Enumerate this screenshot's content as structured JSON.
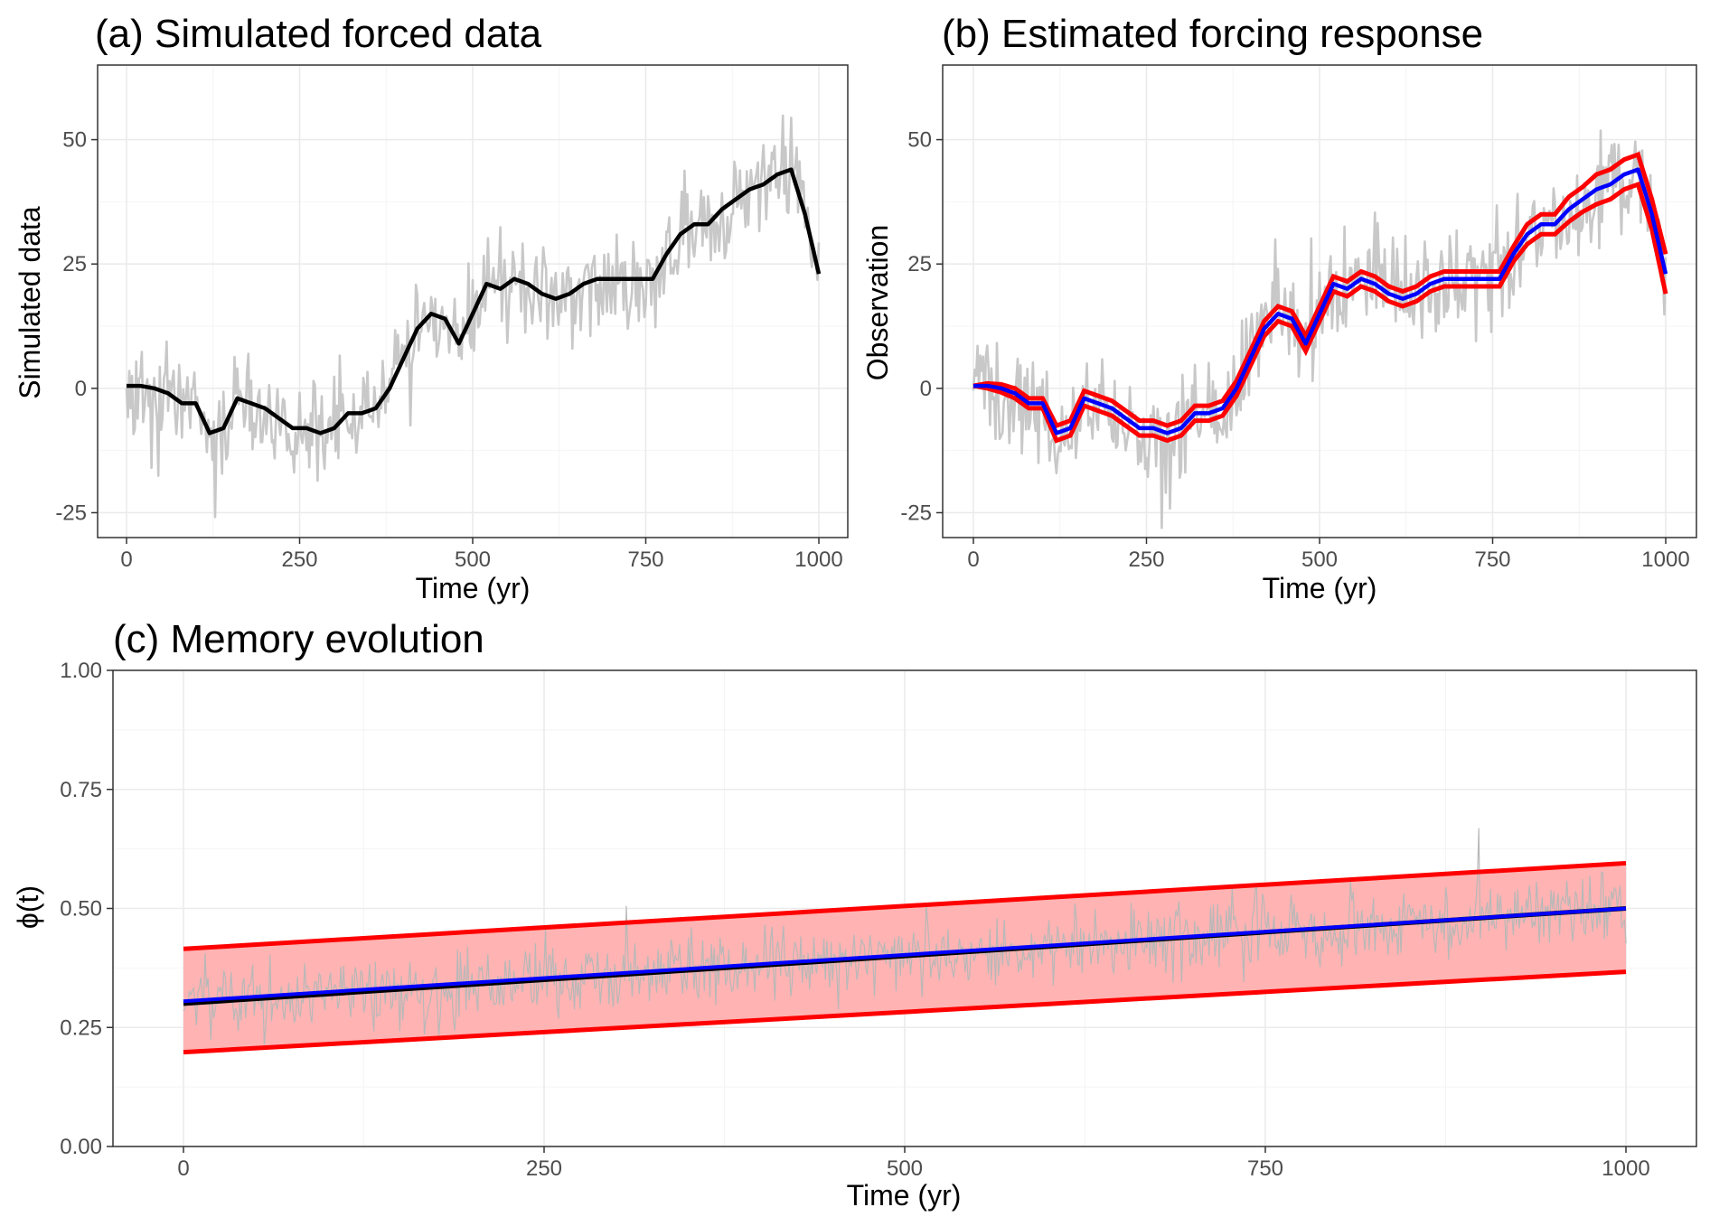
{
  "chart_data": [
    {
      "panel": "a",
      "type": "line",
      "title": "(a) Simulated forced data",
      "xlabel": "Time (yr)",
      "ylabel": "Simulated data",
      "xlim": [
        0,
        1000
      ],
      "ylim": [
        -30,
        65
      ],
      "xticks": [
        0,
        250,
        500,
        750,
        1000
      ],
      "xtick_labels": [
        "0",
        "250",
        "500",
        "750",
        "1000"
      ],
      "yticks": [
        -25,
        0,
        25,
        50
      ],
      "ytick_labels": [
        "-25",
        "0",
        "25",
        "50"
      ],
      "grid": true,
      "colors": {
        "raw": "#c8c8c8",
        "smooth": "#000000"
      },
      "series": [
        {
          "role": "raw-noisy",
          "x": [
            0,
            20,
            40,
            60,
            80,
            100,
            120,
            140,
            160,
            180,
            200,
            220,
            240,
            260,
            280,
            300,
            320,
            340,
            360,
            380,
            400,
            420,
            440,
            460,
            480,
            500,
            520,
            540,
            560,
            580,
            600,
            620,
            640,
            660,
            680,
            700,
            720,
            740,
            760,
            780,
            800,
            820,
            840,
            860,
            880,
            900,
            920,
            940,
            960,
            980,
            1000
          ],
          "values": [
            1,
            0,
            -2,
            -2,
            -4,
            -3,
            -10,
            -9,
            -3,
            -3,
            -6,
            -6,
            -9,
            -10,
            -10,
            -8,
            -5,
            -5,
            -4,
            0,
            7,
            13,
            15,
            13,
            9,
            14,
            20,
            20,
            21,
            22,
            20,
            18,
            20,
            21,
            21,
            22,
            22,
            21,
            22,
            25,
            30,
            32,
            32,
            34,
            38,
            41,
            42,
            43,
            44,
            35,
            20
          ]
        },
        {
          "role": "smoothed-forcing",
          "x": [
            0,
            20,
            40,
            60,
            80,
            100,
            120,
            140,
            160,
            180,
            200,
            220,
            240,
            260,
            280,
            300,
            320,
            340,
            360,
            380,
            400,
            420,
            440,
            460,
            480,
            500,
            520,
            540,
            560,
            580,
            600,
            620,
            640,
            660,
            680,
            700,
            720,
            740,
            760,
            780,
            800,
            820,
            840,
            860,
            880,
            900,
            920,
            940,
            960,
            980,
            1000
          ],
          "values": [
            0.5,
            0.5,
            0,
            -1,
            -3,
            -3,
            -9,
            -8,
            -2,
            -3,
            -4,
            -6,
            -8,
            -8,
            -9,
            -8,
            -5,
            -5,
            -4,
            0,
            6,
            12,
            15,
            14,
            9,
            15,
            21,
            20,
            22,
            21,
            19,
            18,
            19,
            21,
            22,
            22,
            22,
            22,
            22,
            27,
            31,
            33,
            33,
            36,
            38,
            40,
            41,
            43,
            44,
            35,
            23
          ]
        }
      ]
    },
    {
      "panel": "b",
      "type": "line",
      "title": "(b) Estimated forcing response",
      "xlabel": "Time (yr)",
      "ylabel": "Observation",
      "xlim": [
        0,
        1000
      ],
      "ylim": [
        -30,
        65
      ],
      "xticks": [
        0,
        250,
        500,
        750,
        1000
      ],
      "xtick_labels": [
        "0",
        "250",
        "500",
        "750",
        "1000"
      ],
      "yticks": [
        -25,
        0,
        25,
        50
      ],
      "ytick_labels": [
        "-25",
        "0",
        "25",
        "50"
      ],
      "grid": true,
      "colors": {
        "raw": "#c8c8c8",
        "estimate": "#0000ff",
        "bounds": "#ff0000"
      },
      "band_halfwidth": [
        0,
        0.5,
        0.8,
        1,
        1,
        1,
        1.5,
        1.5,
        1.5,
        1.5,
        1.5,
        1.5,
        1.5,
        1.5,
        1.5,
        1.5,
        1.5,
        1.5,
        1.5,
        1.5,
        1.5,
        1.5,
        1.5,
        1.5,
        1.5,
        1.5,
        1.5,
        1.5,
        1.5,
        1.5,
        1.5,
        1.5,
        1.5,
        1.5,
        1.5,
        1.5,
        1.5,
        1.5,
        1.5,
        1.5,
        2,
        2,
        2,
        2.5,
        2.5,
        3,
        3,
        3,
        3,
        3,
        4
      ],
      "series": [
        {
          "role": "raw-noisy",
          "x": [
            0,
            20,
            40,
            60,
            80,
            100,
            120,
            140,
            160,
            180,
            200,
            220,
            240,
            260,
            280,
            300,
            320,
            340,
            360,
            380,
            400,
            420,
            440,
            460,
            480,
            500,
            520,
            540,
            560,
            580,
            600,
            620,
            640,
            660,
            680,
            700,
            720,
            740,
            760,
            780,
            800,
            820,
            840,
            860,
            880,
            900,
            920,
            940,
            960,
            980,
            1000
          ],
          "values": [
            1,
            0,
            -2,
            -2,
            -4,
            -3,
            -10,
            -9,
            -3,
            -3,
            -6,
            -6,
            -9,
            -10,
            -10,
            -8,
            -5,
            -5,
            -4,
            0,
            7,
            13,
            15,
            13,
            9,
            14,
            20,
            20,
            21,
            22,
            20,
            18,
            20,
            21,
            21,
            22,
            22,
            21,
            22,
            25,
            30,
            32,
            32,
            34,
            38,
            41,
            42,
            43,
            44,
            35,
            20
          ]
        },
        {
          "name": "",
          "role": "estimate",
          "x": [
            0,
            20,
            40,
            60,
            80,
            100,
            120,
            140,
            160,
            180,
            200,
            220,
            240,
            260,
            280,
            300,
            320,
            340,
            360,
            380,
            400,
            420,
            440,
            460,
            480,
            500,
            520,
            540,
            560,
            580,
            600,
            620,
            640,
            660,
            680,
            700,
            720,
            740,
            760,
            780,
            800,
            820,
            840,
            860,
            880,
            900,
            920,
            940,
            960,
            980,
            1000
          ],
          "values": [
            0.5,
            0.5,
            0,
            -1,
            -3,
            -3,
            -9,
            -8,
            -2,
            -3,
            -4,
            -6,
            -8,
            -8,
            -9,
            -8,
            -5,
            -5,
            -4,
            0,
            6,
            12,
            15,
            14,
            9,
            15,
            21,
            20,
            22,
            21,
            19,
            18,
            19,
            21,
            22,
            22,
            22,
            22,
            22,
            27,
            31,
            33,
            33,
            36,
            38,
            40,
            41,
            43,
            44,
            35,
            23
          ]
        }
      ]
    },
    {
      "panel": "c",
      "type": "line",
      "title": "(c) Memory evolution",
      "xlabel": "Time (yr)",
      "ylabel": "ϕ(t)",
      "xlim": [
        0,
        1000
      ],
      "ylim": [
        0,
        1
      ],
      "xticks": [
        0,
        250,
        500,
        750,
        1000
      ],
      "xtick_labels": [
        "0",
        "250",
        "500",
        "750",
        "1000"
      ],
      "yticks": [
        0,
        0.25,
        0.5,
        0.75,
        1.0
      ],
      "ytick_labels": [
        "0.00",
        "0.25",
        "0.50",
        "0.75",
        "1.00"
      ],
      "grid": true,
      "colors": {
        "raw": "#b8b8b8",
        "band_fill": "#ffb3b3",
        "bounds": "#ff0000",
        "estimate": "#0000ff",
        "true": "#000000"
      },
      "raw_noise_sd": 0.04,
      "series": [
        {
          "role": "true-memory",
          "x": [
            0,
            1000
          ],
          "values": [
            0.3,
            0.5
          ]
        },
        {
          "role": "estimate",
          "x": [
            0,
            1000
          ],
          "values": [
            0.305,
            0.5
          ]
        },
        {
          "role": "upper-bound",
          "x": [
            0,
            1000
          ],
          "values": [
            0.415,
            0.595
          ]
        },
        {
          "role": "lower-bound",
          "x": [
            0,
            1000
          ],
          "values": [
            0.198,
            0.367
          ]
        }
      ]
    }
  ]
}
